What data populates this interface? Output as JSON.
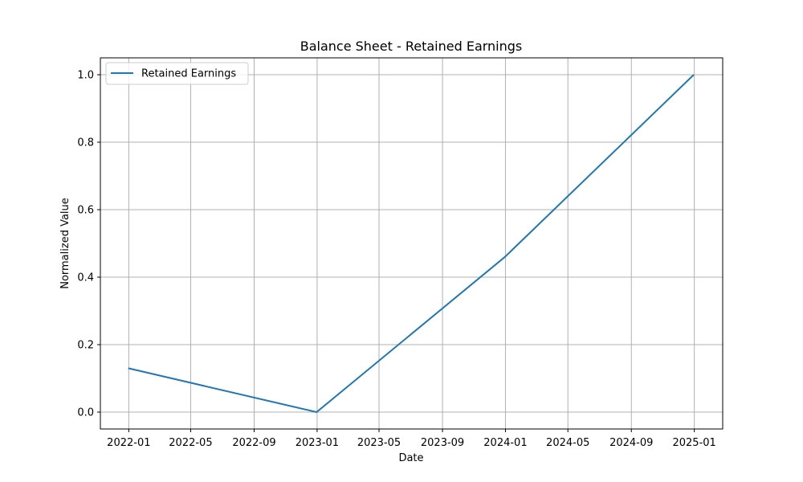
{
  "chart_data": {
    "type": "line",
    "title": "Balance Sheet - Retained Earnings",
    "xlabel": "Date",
    "ylabel": "Normalized Value",
    "x_scale": "date",
    "x_ticks": [
      "2022-01",
      "2022-05",
      "2022-09",
      "2023-01",
      "2023-05",
      "2023-09",
      "2024-01",
      "2024-05",
      "2024-09",
      "2025-01"
    ],
    "y_ticks": [
      "0.0",
      "0.2",
      "0.4",
      "0.6",
      "0.8",
      "1.0"
    ],
    "xlim": [
      "2021-11-07",
      "2025-02-25"
    ],
    "ylim": [
      -0.05,
      1.05
    ],
    "grid": true,
    "legend_position": "top-left",
    "series": [
      {
        "name": "Retained Earnings",
        "color": "#1f77b4",
        "points": [
          {
            "x": "2021-12-31",
            "y": 0.13
          },
          {
            "x": "2022-12-31",
            "y": 0.0
          },
          {
            "x": "2023-12-31",
            "y": 0.46
          },
          {
            "x": "2024-12-31",
            "y": 1.0
          }
        ]
      }
    ]
  }
}
